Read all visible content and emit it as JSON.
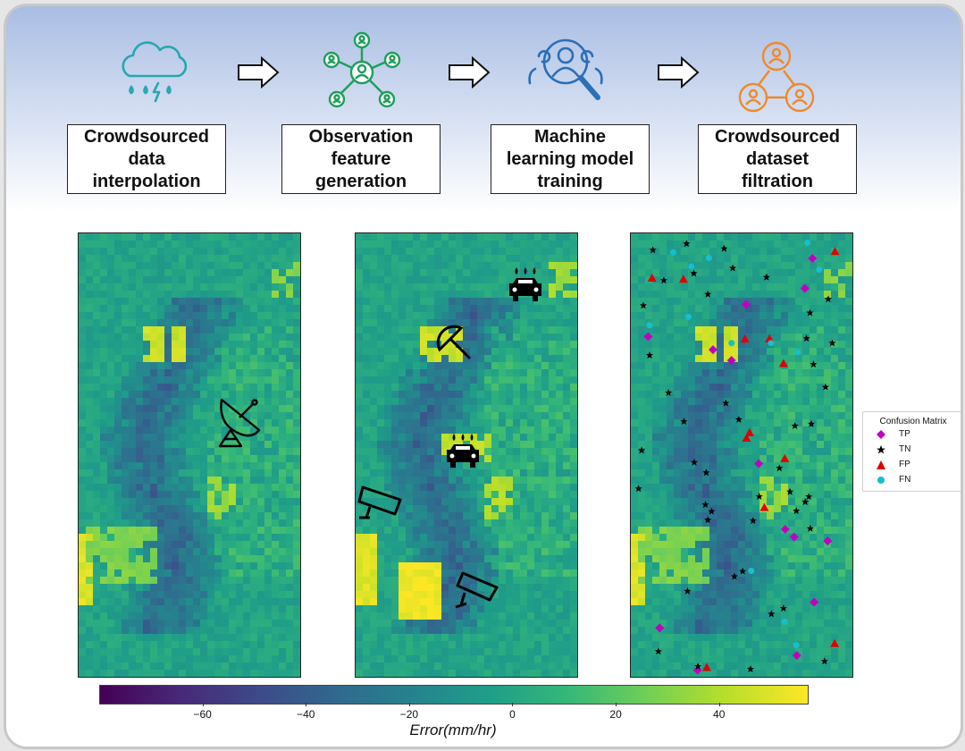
{
  "steps": [
    {
      "label": "Crowdsourced\ndata\ninterpolation",
      "icon": "cloud-rain-lightning-icon",
      "color": "#26a7b0"
    },
    {
      "label": "Observation\nfeature\ngeneration",
      "icon": "network-nodes-icon",
      "color": "#1e9e5a"
    },
    {
      "label": "Machine\nlearning model\ntraining",
      "icon": "person-search-icon",
      "color": "#2a6fb8"
    },
    {
      "label": "Crowdsourced\ndataset\nfiltration",
      "icon": "people-triangle-icon",
      "color": "#f0892a"
    }
  ],
  "panels": [
    {
      "name": "interpolation-map",
      "icons": [
        "satellite-dish-icon"
      ]
    },
    {
      "name": "feature-map",
      "icons": [
        "car-rain-icon",
        "umbrella-icon",
        "car-rain-icon",
        "camera-icon",
        "camera-icon"
      ]
    },
    {
      "name": "classification-map",
      "icons": []
    }
  ],
  "legend": {
    "title": "Confusion Matrix",
    "items": [
      {
        "label": "TP",
        "marker": "diamond",
        "color": "#c000c0"
      },
      {
        "label": "TN",
        "marker": "star",
        "color": "#000000"
      },
      {
        "label": "FP",
        "marker": "triangle",
        "color": "#e00000"
      },
      {
        "label": "FN",
        "marker": "circle",
        "color": "#17becf"
      }
    ]
  },
  "chart_data": {
    "type": "heatmap",
    "colormap": "viridis",
    "title": "",
    "xlabel": "Error(mm/hr)",
    "ylabel": "",
    "colorbar_range": [
      -80,
      57
    ],
    "colorbar_ticks": [
      -60,
      -40,
      -20,
      0,
      20,
      40
    ],
    "colorbar_tick_labels": [
      "−60",
      "−40",
      "−20",
      "0",
      "20",
      "40"
    ],
    "legend": [
      "TP",
      "TN",
      "FP",
      "FN"
    ]
  }
}
